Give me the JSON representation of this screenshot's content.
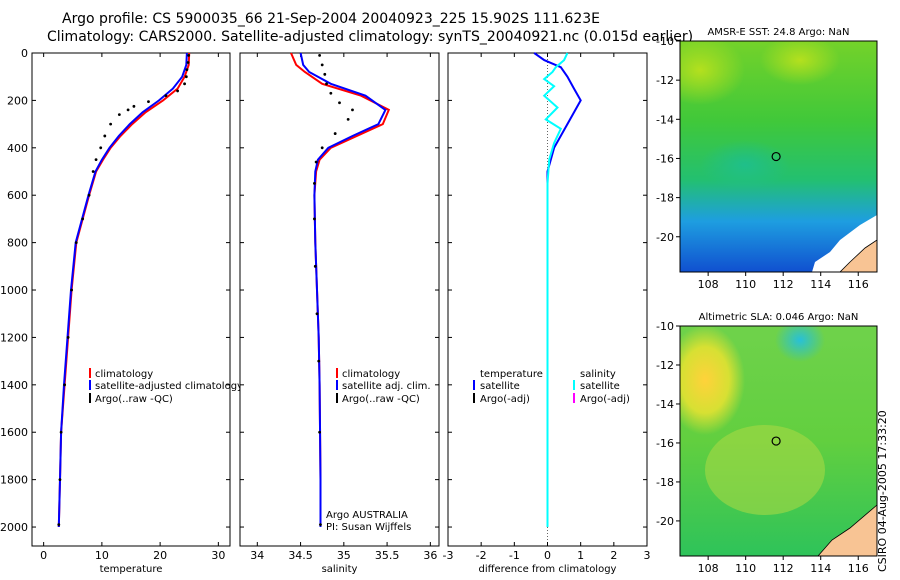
{
  "header": {
    "line1": "Argo profile: CS 5900035_66 21-Sep-2004 20040923_225 15.902S 111.623E",
    "line2": "Climatology: CARS2000. Satellite-adjusted climatology: synTS_20040921.nc (0.015d earlier)"
  },
  "credit": "CSIRO 04-Aug-2005 17:33:20",
  "colors": {
    "climatology": "#ff0000",
    "satellite": "#0000ff",
    "argo": "#000000",
    "salinity_satellite": "#00ffff",
    "argo_adj_salinity": "#ff00ff"
  },
  "chart_data": [
    {
      "type": "line",
      "name": "temperature-profile",
      "xlabel": "temperature",
      "ylabel": "",
      "xlim": [
        -2,
        32
      ],
      "ylim": [
        2080,
        0
      ],
      "xticks": [
        "0",
        "10",
        "20",
        "30"
      ],
      "xtick_values": [
        0,
        10,
        20,
        30
      ],
      "yticks": [
        "0",
        "200",
        "400",
        "600",
        "800",
        "1000",
        "1200",
        "1400",
        "1600",
        "1800",
        "2000"
      ],
      "ytick_values": [
        0,
        200,
        400,
        600,
        800,
        1000,
        1200,
        1400,
        1600,
        1800,
        2000
      ],
      "legend": [
        "climatology",
        "satellite-adjusted climatology",
        "Argo(..raw -QC)"
      ],
      "series": [
        {
          "name": "climatology",
          "style": "line",
          "x": [
            25.0,
            24.9,
            24.2,
            23.0,
            20.5,
            17.5,
            15.2,
            13.2,
            11.5,
            10.2,
            9.0,
            7.8,
            6.7,
            5.6,
            4.8,
            4.2,
            3.6,
            3.0,
            2.8,
            2.6
          ],
          "y": [
            0,
            50,
            100,
            150,
            200,
            250,
            300,
            350,
            400,
            450,
            500,
            600,
            700,
            800,
            1000,
            1200,
            1400,
            1600,
            1800,
            2000
          ]
        },
        {
          "name": "satellite",
          "style": "line",
          "x": [
            24.6,
            24.5,
            23.8,
            22.2,
            19.8,
            17.0,
            14.8,
            12.9,
            11.3,
            10.0,
            8.9,
            7.7,
            6.6,
            5.5,
            4.7,
            4.1,
            3.5,
            3.0,
            2.8,
            2.6
          ],
          "y": [
            0,
            50,
            100,
            150,
            200,
            250,
            300,
            350,
            400,
            450,
            500,
            600,
            700,
            800,
            1000,
            1200,
            1400,
            1600,
            1800,
            2000
          ]
        },
        {
          "name": "argo",
          "style": "dots",
          "x": [
            24.9,
            24.8,
            24.6,
            24.5,
            24.2,
            23.0,
            21.0,
            18.0,
            15.5,
            14.5,
            13.0,
            11.5,
            10.5,
            9.8,
            9.0,
            8.5,
            7.8,
            6.7,
            5.6,
            4.8,
            4.2,
            3.6,
            3.0,
            2.8,
            2.6
          ],
          "y": [
            10,
            40,
            70,
            100,
            130,
            160,
            180,
            205,
            225,
            240,
            260,
            300,
            350,
            400,
            450,
            500,
            600,
            700,
            800,
            1000,
            1200,
            1400,
            1600,
            1800,
            1990
          ]
        }
      ]
    },
    {
      "type": "line",
      "name": "salinity-profile",
      "xlabel": "salinity",
      "xlim": [
        33.8,
        36.1
      ],
      "ylim": [
        2080,
        0
      ],
      "xticks": [
        "34",
        "34.5",
        "35",
        "35.5",
        "36"
      ],
      "xtick_values": [
        34,
        34.5,
        35,
        35.5,
        36
      ],
      "legend": [
        "climatology",
        "satellite adj. clim.",
        "Argo(..raw -QC)"
      ],
      "annotations": [
        "Argo AUSTRALIA",
        "PI: Susan Wijffels"
      ],
      "series": [
        {
          "name": "climatology",
          "style": "line",
          "x": [
            34.39,
            34.45,
            34.55,
            34.75,
            35.2,
            35.52,
            35.45,
            35.15,
            34.85,
            34.72,
            34.68,
            34.66,
            34.67,
            34.69,
            34.71,
            34.72,
            34.73,
            34.73
          ],
          "y": [
            0,
            50,
            80,
            130,
            180,
            240,
            300,
            350,
            400,
            450,
            500,
            600,
            800,
            1000,
            1200,
            1400,
            1800,
            2000
          ]
        },
        {
          "name": "satellite",
          "style": "line",
          "x": [
            34.5,
            34.53,
            34.6,
            34.85,
            35.25,
            35.48,
            35.4,
            35.1,
            34.82,
            34.7,
            34.67,
            34.66,
            34.67,
            34.69,
            34.71,
            34.72,
            34.73,
            34.73
          ],
          "y": [
            0,
            50,
            80,
            130,
            180,
            240,
            300,
            350,
            400,
            450,
            500,
            600,
            800,
            1000,
            1200,
            1400,
            1800,
            2000
          ]
        },
        {
          "name": "argo",
          "style": "dots",
          "x": [
            34.72,
            34.75,
            34.78,
            34.8,
            34.85,
            34.95,
            35.1,
            35.05,
            34.9,
            34.75,
            34.68,
            34.66,
            34.66,
            34.67,
            34.69,
            34.71,
            34.72,
            34.73
          ],
          "y": [
            10,
            50,
            90,
            130,
            170,
            210,
            240,
            280,
            340,
            400,
            460,
            550,
            700,
            900,
            1100,
            1300,
            1600,
            1990
          ]
        }
      ]
    },
    {
      "type": "line",
      "name": "difference-from-climatology",
      "xlabel": "difference from climatology",
      "xlim": [
        -3,
        3
      ],
      "ylim": [
        2080,
        0
      ],
      "xticks": [
        "-3",
        "-2",
        "-1",
        "0",
        "1",
        "2",
        "3"
      ],
      "xtick_values": [
        -3,
        -2,
        -1,
        0,
        1,
        2,
        3
      ],
      "legend_left": [
        "temperature",
        "satellite",
        "Argo(-adj)"
      ],
      "legend_right": [
        "salinity",
        "satellite",
        "Argo(-adj)"
      ],
      "series": [
        {
          "name": "temperature-satellite",
          "style": "line",
          "x": [
            -0.4,
            -0.1,
            0.4,
            0.6,
            0.8,
            1.0,
            0.6,
            0.2,
            0.0,
            0.0,
            0.0,
            0.0
          ],
          "y": [
            0,
            30,
            60,
            100,
            150,
            200,
            300,
            400,
            500,
            800,
            1200,
            2000
          ]
        },
        {
          "name": "salinity-satellite",
          "style": "line",
          "x": [
            0.6,
            0.5,
            0.25,
            0.15,
            -0.1,
            0.2,
            -0.1,
            0.3,
            -0.05,
            0.4,
            0.2,
            0.05,
            0.0,
            0.0,
            0.0
          ],
          "y": [
            0,
            30,
            60,
            80,
            110,
            140,
            180,
            230,
            280,
            320,
            380,
            450,
            550,
            1000,
            2000
          ]
        }
      ]
    },
    {
      "type": "heatmap",
      "name": "amsr-e-sst-map",
      "title": "AMSR-E SST: 24.8 Argo: NaN",
      "xlim": [
        106.5,
        117
      ],
      "ylim": [
        -21.8,
        -10
      ],
      "xticks": [
        "108",
        "110",
        "112",
        "114",
        "116"
      ],
      "xtick_values": [
        108,
        110,
        112,
        114,
        116
      ],
      "yticks": [
        "-10",
        "-12",
        "-14",
        "-16",
        "-18",
        "-20"
      ],
      "ytick_values": [
        -10,
        -12,
        -14,
        -16,
        -18,
        -20
      ],
      "float_position": {
        "lon": 111.623,
        "lat": -15.902
      }
    },
    {
      "type": "heatmap",
      "name": "altimetric-sla-map",
      "title": "Altimetric SLA: 0.046 Argo: NaN",
      "xlim": [
        106.5,
        117
      ],
      "ylim": [
        -21.8,
        -10
      ],
      "xticks": [
        "108",
        "110",
        "112",
        "114",
        "116"
      ],
      "xtick_values": [
        108,
        110,
        112,
        114,
        116
      ],
      "yticks": [
        "-10",
        "-12",
        "-14",
        "-16",
        "-18",
        "-20"
      ],
      "ytick_values": [
        -10,
        -12,
        -14,
        -16,
        -18,
        -20
      ],
      "float_position": {
        "lon": 111.623,
        "lat": -15.902
      }
    }
  ]
}
